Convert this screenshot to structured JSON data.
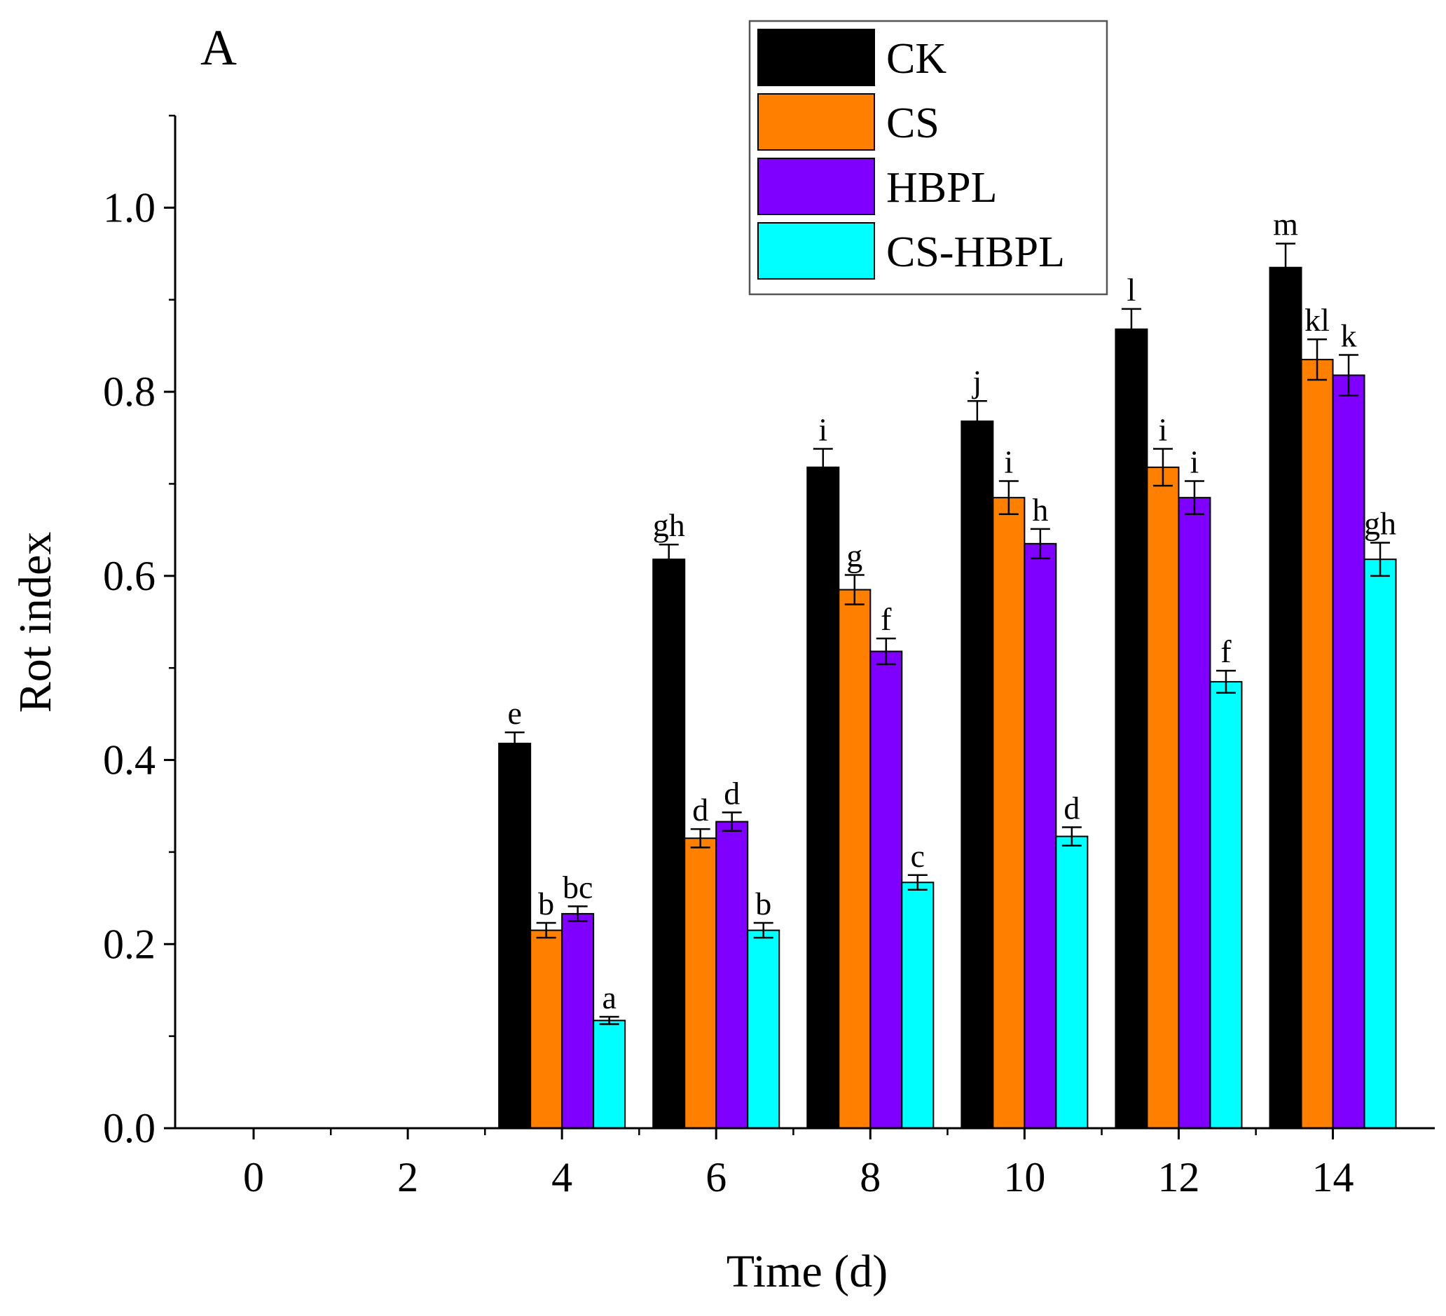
{
  "chart_data": {
    "type": "bar",
    "panel_label": "A",
    "title": "",
    "xlabel": "Time (d)",
    "ylabel": "Rot index",
    "categories": [
      "0",
      "2",
      "4",
      "6",
      "8",
      "10",
      "12",
      "14"
    ],
    "ylim": [
      0,
      1.1
    ],
    "yticks": [
      "0.0",
      "0.2",
      "0.4",
      "0.6",
      "0.8",
      "1.0"
    ],
    "legend_position": "top-right",
    "series": [
      {
        "name": "CK",
        "color": "#000000",
        "values": [
          0,
          0,
          0.418,
          0.618,
          0.718,
          0.768,
          0.868,
          0.935
        ],
        "errors": [
          0,
          0,
          0.012,
          0.016,
          0.02,
          0.022,
          0.022,
          0.026
        ],
        "labels": [
          "",
          "",
          "e",
          "gh",
          "i",
          "j",
          "l",
          "m"
        ]
      },
      {
        "name": "CS",
        "color": "#FF7F00",
        "values": [
          0,
          0,
          0.215,
          0.315,
          0.585,
          0.685,
          0.718,
          0.835
        ],
        "errors": [
          0,
          0,
          0.008,
          0.01,
          0.016,
          0.018,
          0.02,
          0.022
        ],
        "labels": [
          "",
          "",
          "b",
          "d",
          "g",
          "i",
          "i",
          "kl"
        ]
      },
      {
        "name": "HBPL",
        "color": "#7F00FF",
        "values": [
          0,
          0,
          0.233,
          0.333,
          0.518,
          0.635,
          0.685,
          0.818
        ],
        "errors": [
          0,
          0,
          0.008,
          0.01,
          0.014,
          0.016,
          0.018,
          0.022
        ],
        "labels": [
          "",
          "",
          "bc",
          "d",
          "f",
          "h",
          "i",
          "k"
        ]
      },
      {
        "name": "CS-HBPL",
        "color": "#00FFFF",
        "values": [
          0,
          0,
          0.117,
          0.215,
          0.267,
          0.317,
          0.485,
          0.618
        ],
        "errors": [
          0,
          0,
          0.004,
          0.008,
          0.008,
          0.01,
          0.012,
          0.018
        ],
        "labels": [
          "",
          "",
          "a",
          "b",
          "c",
          "d",
          "f",
          "gh"
        ]
      }
    ]
  }
}
